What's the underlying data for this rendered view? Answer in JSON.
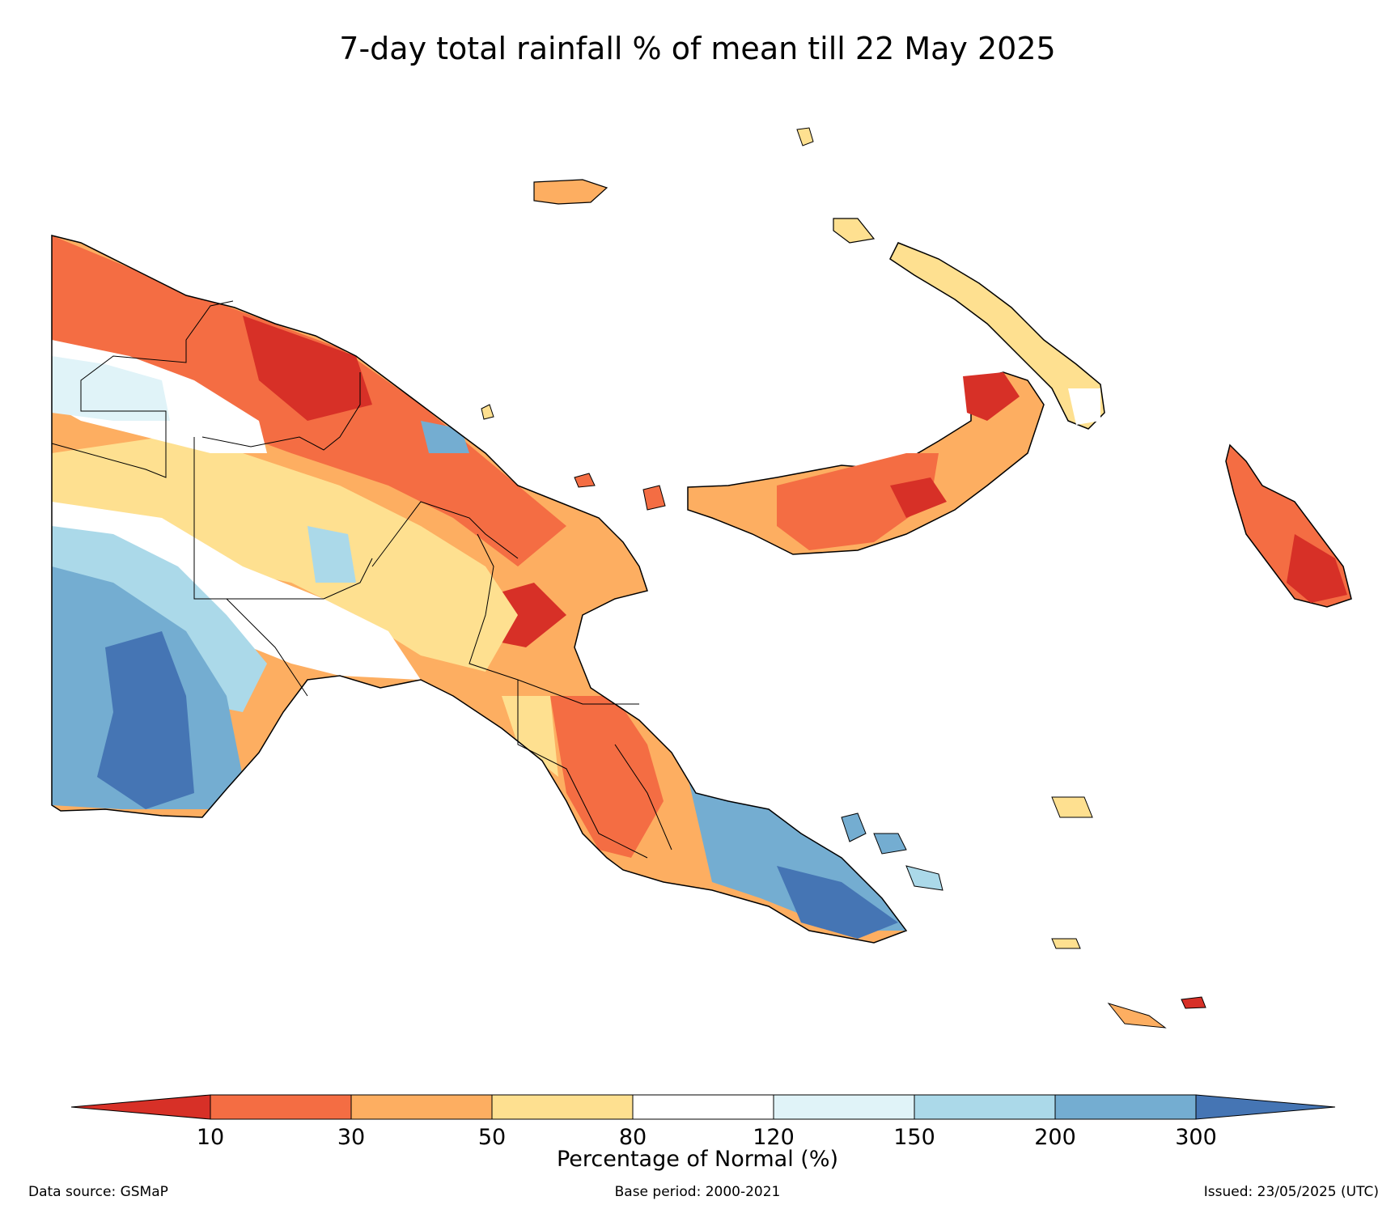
{
  "title": "7-day total rainfall % of mean till 22 May 2025",
  "colorbar": {
    "label": "Percentage of Normal (%)",
    "ticks": [
      "10",
      "30",
      "50",
      "80",
      "120",
      "150",
      "200",
      "300"
    ],
    "colors": {
      "under": "#d73027",
      "bins": [
        "#f46d43",
        "#fdae61",
        "#fee090",
        "#ffffff",
        "#e0f3f8",
        "#abd9e9",
        "#74add1"
      ],
      "over": "#4575b4"
    }
  },
  "footer": {
    "source": "Data source: GSMaP",
    "base_period": "Base period: 2000-2021",
    "issued": "Issued: 23/05/2025 (UTC)"
  }
}
